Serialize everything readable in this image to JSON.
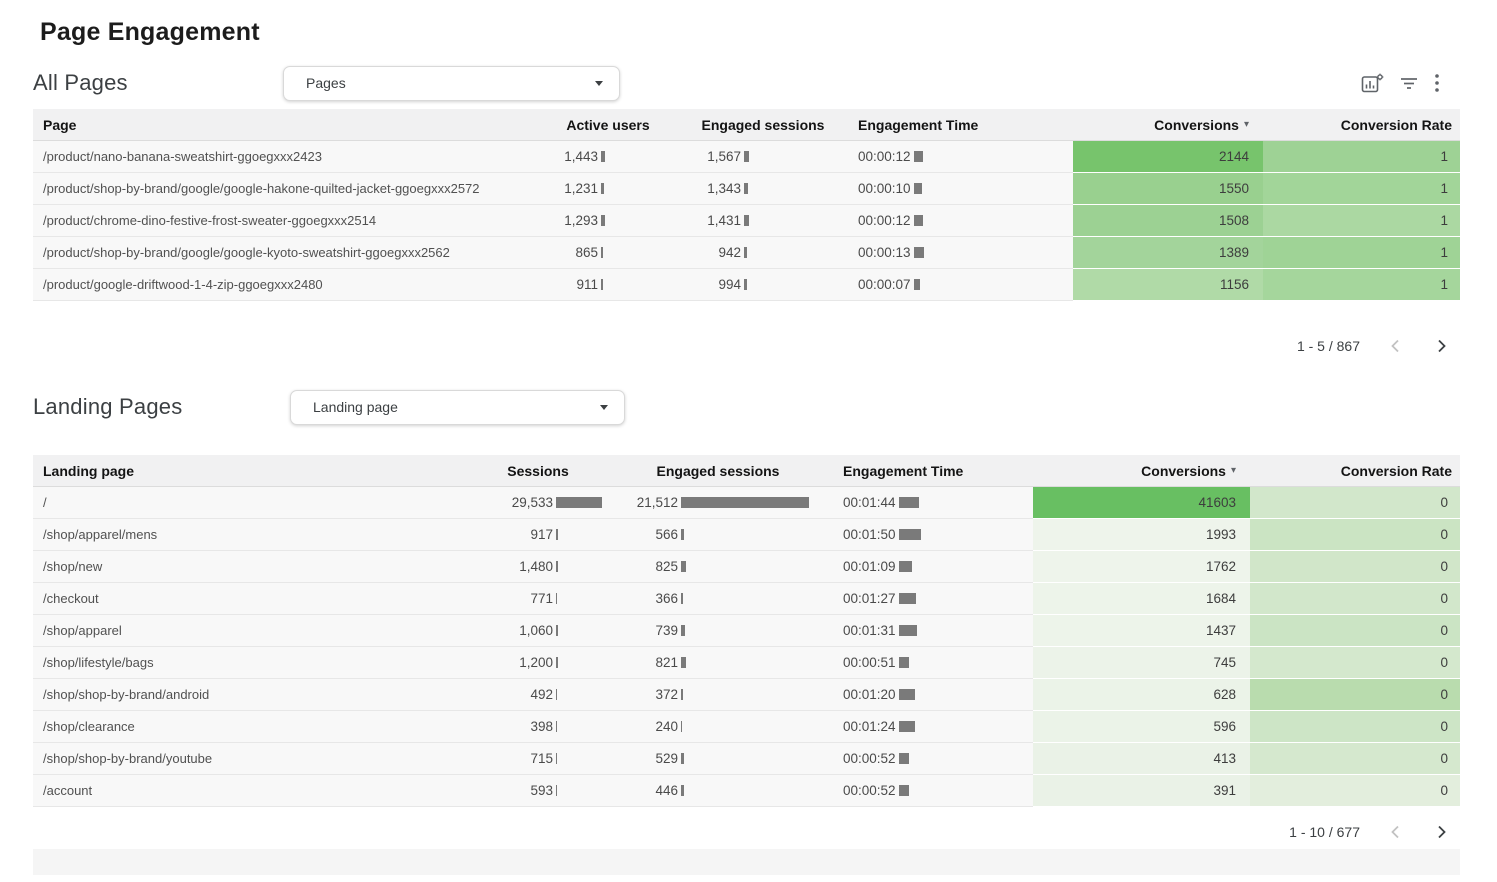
{
  "title": "Page Engagement",
  "toolbar": {
    "icons": [
      "chart-settings",
      "filter",
      "more-options"
    ]
  },
  "sections": [
    {
      "heading": "All Pages",
      "dropdown": {
        "label": "Pages"
      },
      "columns": [
        {
          "label": "Page",
          "type": "text"
        },
        {
          "label": "Active users",
          "type": "num-bar"
        },
        {
          "label": "Engaged sessions",
          "type": "num-bar"
        },
        {
          "label": "Engagement Time",
          "type": "time-bar"
        },
        {
          "label": "Conversions",
          "type": "heat",
          "sorted": "desc"
        },
        {
          "label": "Conversion Rate",
          "type": "heat"
        }
      ],
      "rows": [
        {
          "cells": [
            "/product/nano-banana-sweatshirt-ggoegxxx2423",
            "1,443",
            "1,567",
            "00:00:12",
            "2144",
            "1"
          ],
          "bars": {
            "1": 4,
            "2": 5,
            "3": 9
          },
          "bg": {
            "4": "#77c46c",
            "5": "#9ed295"
          }
        },
        {
          "cells": [
            "/product/shop-by-brand/google/google-hakone-quilted-jacket-ggoegxxx2572",
            "1,231",
            "1,343",
            "00:00:10",
            "1550",
            "1"
          ],
          "bars": {
            "1": 3,
            "2": 4,
            "3": 8
          },
          "bg": {
            "4": "#99d08f",
            "5": "#a2d599"
          }
        },
        {
          "cells": [
            "/product/chrome-dino-festive-frost-sweater-ggoegxxx2514",
            "1,293",
            "1,431",
            "00:00:12",
            "1508",
            "1"
          ],
          "bars": {
            "1": 4,
            "2": 5,
            "3": 9
          },
          "bg": {
            "4": "#9cd193",
            "5": "#abd8a2"
          }
        },
        {
          "cells": [
            "/product/shop-by-brand/google/google-kyoto-sweatshirt-ggoegxxx2562",
            "865",
            "942",
            "00:00:13",
            "1389",
            "1"
          ],
          "bars": {
            "1": 2,
            "2": 3,
            "3": 10
          },
          "bg": {
            "4": "#a3d49b",
            "5": "#9fd396"
          }
        },
        {
          "cells": [
            "/product/google-driftwood-1-4-zip-ggoegxxx2480",
            "911",
            "994",
            "00:00:07",
            "1156",
            "1"
          ],
          "bars": {
            "1": 2,
            "2": 3,
            "3": 6
          },
          "bg": {
            "4": "#b0daa7",
            "5": "#a5d69c"
          }
        }
      ],
      "pagination": {
        "range": "1 - 5 / 867",
        "prev_enabled": false,
        "next_enabled": true
      }
    },
    {
      "heading": "Landing Pages",
      "dropdown": {
        "label": "Landing page"
      },
      "columns": [
        {
          "label": "Landing page",
          "type": "text"
        },
        {
          "label": "Sessions",
          "type": "num-bar"
        },
        {
          "label": "Engaged sessions",
          "type": "num-bar"
        },
        {
          "label": "Engagement Time",
          "type": "time-bar"
        },
        {
          "label": "Conversions",
          "type": "heat",
          "sorted": "desc"
        },
        {
          "label": "Conversion Rate",
          "type": "heat"
        }
      ],
      "rows": [
        {
          "cells": [
            "/",
            "29,533",
            "21,512",
            "00:01:44",
            "41603",
            "0"
          ],
          "bars": {
            "1": 46,
            "2": 128,
            "3": 20
          },
          "bg": {
            "4": "#68bf62",
            "5": "#d2e7cb"
          }
        },
        {
          "cells": [
            "/shop/apparel/mens",
            "917",
            "566",
            "00:01:50",
            "1993",
            "0"
          ],
          "bars": {
            "1": 2,
            "2": 3,
            "3": 22
          },
          "bg": {
            "4": "#eef4eb",
            "5": "#cbe4c3"
          }
        },
        {
          "cells": [
            "/shop/new",
            "1,480",
            "825",
            "00:01:09",
            "1762",
            "0"
          ],
          "bars": {
            "1": 2,
            "2": 5,
            "3": 13
          },
          "bg": {
            "4": "#eef4eb",
            "5": "#d1e6c9"
          }
        },
        {
          "cells": [
            "/checkout",
            "771",
            "366",
            "00:01:27",
            "1684",
            "0"
          ],
          "bars": {
            "1": 1,
            "2": 2,
            "3": 17
          },
          "bg": {
            "4": "#edf4ea",
            "5": "#d2e7cb"
          }
        },
        {
          "cells": [
            "/shop/apparel",
            "1,060",
            "739",
            "00:01:31",
            "1437",
            "0"
          ],
          "bars": {
            "1": 2,
            "2": 4,
            "3": 18
          },
          "bg": {
            "4": "#edf4ea",
            "5": "#cbe4c4"
          }
        },
        {
          "cells": [
            "/shop/lifestyle/bags",
            "1,200",
            "821",
            "00:00:51",
            "745",
            "0"
          ],
          "bars": {
            "1": 2,
            "2": 5,
            "3": 10
          },
          "bg": {
            "4": "#ecf3e9",
            "5": "#d4e8cd"
          }
        },
        {
          "cells": [
            "/shop/shop-by-brand/android",
            "492",
            "372",
            "00:01:20",
            "628",
            "0"
          ],
          "bars": {
            "1": 1,
            "2": 2,
            "3": 16
          },
          "bg": {
            "4": "#ebf3e8",
            "5": "#b9dcae"
          }
        },
        {
          "cells": [
            "/shop/clearance",
            "398",
            "240",
            "00:01:24",
            "596",
            "0"
          ],
          "bars": {
            "1": 1,
            "2": 1,
            "3": 16
          },
          "bg": {
            "4": "#ebf3e8",
            "5": "#cde5c6"
          }
        },
        {
          "cells": [
            "/shop/shop-by-brand/youtube",
            "715",
            "529",
            "00:00:52",
            "413",
            "0"
          ],
          "bars": {
            "1": 1,
            "2": 3,
            "3": 10
          },
          "bg": {
            "4": "#eaf2e7",
            "5": "#d5e8ce"
          }
        },
        {
          "cells": [
            "/account",
            "593",
            "446",
            "00:00:52",
            "391",
            "0"
          ],
          "bars": {
            "1": 1,
            "2": 3,
            "3": 10
          },
          "bg": {
            "4": "#eaf2e7",
            "5": "#e3eedd"
          }
        }
      ],
      "pagination": {
        "range": "1 - 10 / 677",
        "prev_enabled": false,
        "next_enabled": true
      }
    }
  ]
}
